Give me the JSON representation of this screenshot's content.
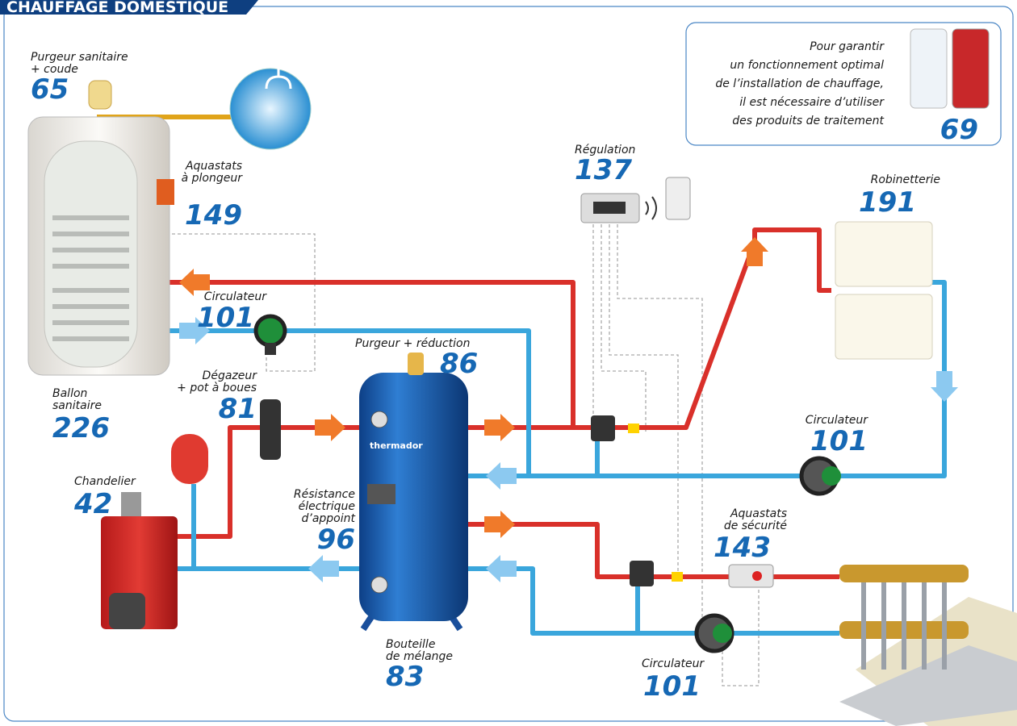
{
  "header": {
    "title": "CHAUFFAGE DOMESTIQUE"
  },
  "labels": [
    {
      "lines": [
        "Purgeur sanitaire",
        "+ coude"
      ],
      "page": 65
    },
    {
      "lines": [
        "Aquastats",
        "à plongeur"
      ],
      "page": 149
    },
    {
      "lines": [
        "Circulateur"
      ],
      "page": 101
    },
    {
      "lines": [
        "Ballon",
        "sanitaire"
      ],
      "page": 226
    },
    {
      "lines": [
        "Dégazeur",
        "+ pot à boues"
      ],
      "page": 81
    },
    {
      "lines": [
        "Chandelier"
      ],
      "page": 42
    },
    {
      "lines": [
        "Purgeur + réduction"
      ],
      "page": 86
    },
    {
      "lines": [
        "Résistance",
        "électrique",
        "d’appoint"
      ],
      "page": 96
    },
    {
      "lines": [
        "Bouteille",
        "de mélange"
      ],
      "page": 83
    },
    {
      "lines": [
        "Régulation"
      ],
      "page": 137
    },
    {
      "lines": [
        "Robinetterie"
      ],
      "page": 191
    },
    {
      "lines": [
        "Circulateur"
      ],
      "page": 101
    },
    {
      "lines": [
        "Aquastats",
        "de sécurité"
      ],
      "page": 143
    },
    {
      "lines": [
        "Circulateur"
      ],
      "page": 101
    }
  ],
  "callout": {
    "lines": [
      "Pour garantir",
      "un fonctionnement optimal",
      "de l’installation de chauffage,",
      "il est nécessaire d’utiliser",
      "des produits de traitement"
    ],
    "page": 69
  },
  "tank_brand": "thermador"
}
